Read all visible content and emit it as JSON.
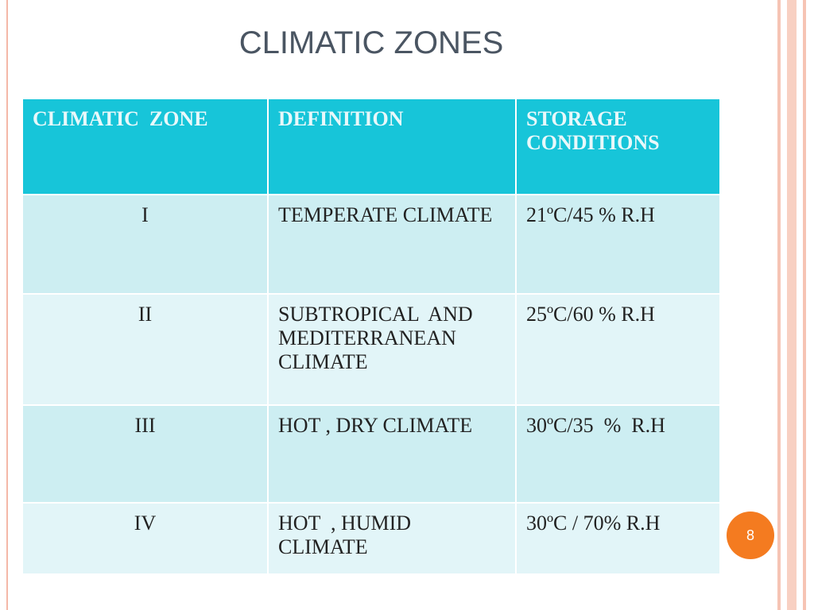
{
  "header": {
    "title": "CLIMATIC ZONES"
  },
  "table": {
    "columns": [
      "CLIMATIC  ZONE",
      "DEFINITION",
      "STORAGE CONDITIONS"
    ],
    "rows": [
      [
        "I",
        "TEMPERATE CLIMATE",
        "21ºC/45 % R.H"
      ],
      [
        "II",
        "SUBTROPICAL  AND MEDITERRANEAN CLIMATE",
        "25ºC/60 % R.H"
      ],
      [
        "III",
        "HOT , DRY CLIMATE",
        "30ºC/35  %  R.H"
      ],
      [
        "IV",
        "HOT  , HUMID CLIMATE",
        "30ºC / 70% R.H"
      ]
    ]
  },
  "footer": {
    "page_number": "8"
  }
}
